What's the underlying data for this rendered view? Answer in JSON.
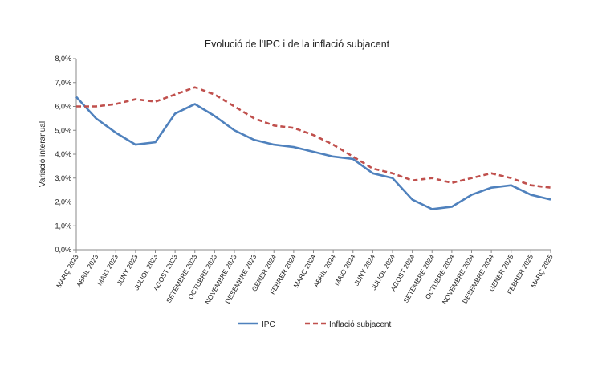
{
  "chart_data": {
    "type": "line",
    "title": "Evolució de l'IPC i de la inflació subjacent",
    "xlabel": "",
    "ylabel": "Variació interanual",
    "ylim": [
      0,
      8
    ],
    "yticks": [
      "0,0%",
      "1,0%",
      "2,0%",
      "3,0%",
      "4,0%",
      "5,0%",
      "6,0%",
      "7,0%",
      "8,0%"
    ],
    "grid": false,
    "legend_position": "bottom",
    "categories": [
      "MARÇ 2023",
      "ABRIL 2023",
      "MAIG 2023",
      "JUNY 2023",
      "JULIOL 2023",
      "AGOST 2023",
      "SETEMBRE 2023",
      "OCTUBRE 2023",
      "NOVEMBRE 2023",
      "DESEMBRE 2023",
      "GENER 2024",
      "FEBRER 2024",
      "MARÇ 2024",
      "ABRIL 2024",
      "MAIG 2024",
      "JUNY 2024",
      "JULIOL 2024",
      "AGOST 2024",
      "SETEMBRE 2024",
      "OCTUBRE 2024",
      "NOVEMBRE 2024",
      "DESEMBRE 2024",
      "GENER 2025",
      "FEBRER 2025",
      "MARÇ 2025"
    ],
    "series": [
      {
        "name": "IPC",
        "color": "#4f81bd",
        "style": "solid",
        "values": [
          6.4,
          5.5,
          4.9,
          4.4,
          4.5,
          5.7,
          6.1,
          5.6,
          5.0,
          4.6,
          4.4,
          4.3,
          4.1,
          3.9,
          3.8,
          3.2,
          3.0,
          2.1,
          1.7,
          1.8,
          2.3,
          2.6,
          2.7,
          2.3,
          2.1
        ]
      },
      {
        "name": "Inflació subjacent",
        "color": "#c0504d",
        "style": "dashed",
        "values": [
          6.0,
          6.0,
          6.1,
          6.3,
          6.2,
          6.5,
          6.8,
          6.5,
          6.0,
          5.5,
          5.2,
          5.1,
          4.8,
          4.4,
          3.9,
          3.4,
          3.2,
          2.9,
          3.0,
          2.8,
          3.0,
          3.2,
          3.0,
          2.7,
          2.6
        ]
      }
    ]
  }
}
